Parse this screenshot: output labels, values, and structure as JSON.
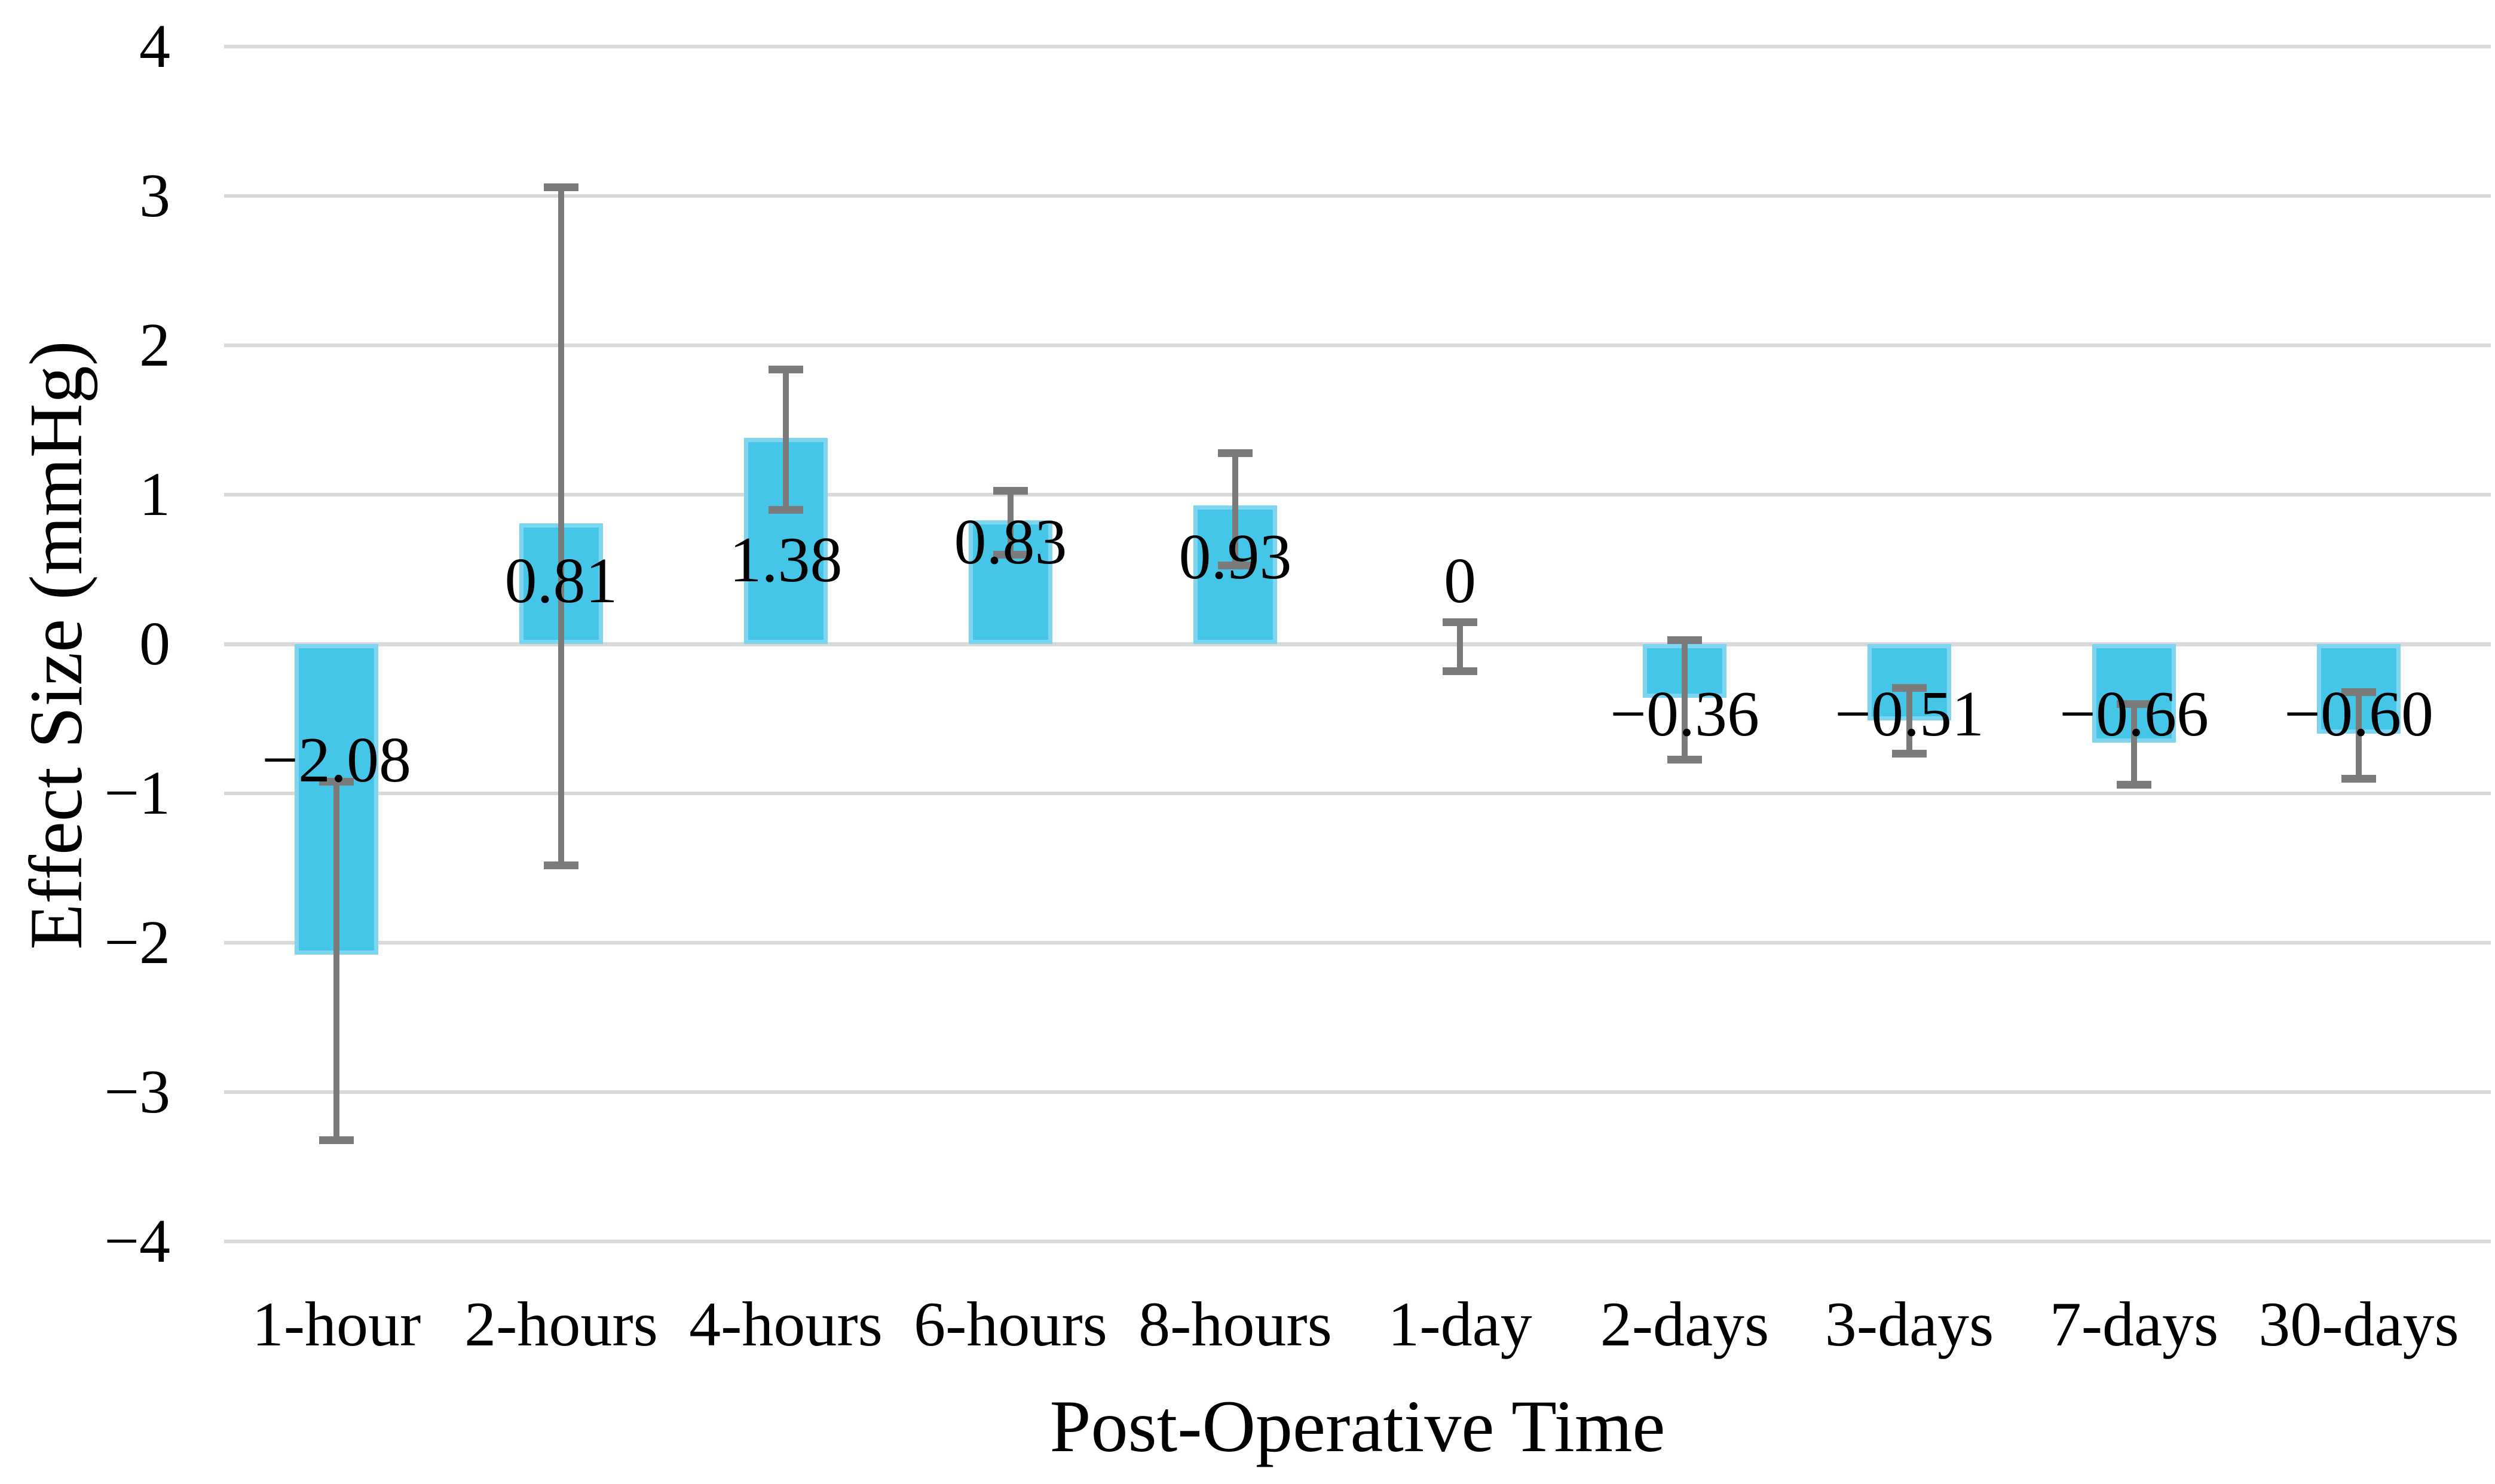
{
  "chart_data": {
    "type": "bar",
    "title": "",
    "xlabel": "Post-Operative Time",
    "ylabel": "Effect Size (mmHg)",
    "categories": [
      "1-hour",
      "2-hours",
      "4-hours",
      "6-hours",
      "8-hours",
      "1-day",
      "2-days",
      "3-days",
      "7-days",
      "30-days"
    ],
    "values": [
      -2.08,
      0.81,
      1.38,
      0.83,
      0.93,
      0,
      -0.36,
      -0.51,
      -0.66,
      -0.6
    ],
    "data_labels": [
      "−2.08",
      "0.81",
      "1.38",
      "0.83",
      "0.93",
      "0",
      "−0.36",
      "−0.51",
      "−0.66",
      "−0.60"
    ],
    "error_bars": {
      "low": [
        -3.32,
        -1.48,
        0.9,
        0.6,
        0.53,
        -0.18,
        -0.77,
        -0.73,
        -0.94,
        -0.9
      ],
      "high": [
        -0.92,
        3.06,
        1.84,
        1.03,
        1.28,
        0.15,
        0.03,
        -0.29,
        -0.4,
        -0.32
      ]
    },
    "ylim": [
      -4,
      4
    ],
    "ytick_values": [
      4,
      3,
      2,
      1,
      0,
      -1,
      -2,
      -3,
      -4
    ],
    "ytick_labels": [
      "4",
      "3",
      "2",
      "1",
      "0",
      "−1",
      "−2",
      "−3",
      "−4"
    ],
    "grid": "horizontal",
    "legend": "none",
    "layout": {
      "label_positions_v": [
        -0.78,
        0.42,
        0.56,
        0.68,
        0.58,
        0.42,
        -0.47,
        -0.47,
        -0.47,
        -0.47
      ]
    },
    "colors": {
      "bar_fill": "#45c6e9",
      "bar_edge": "#7ed5f0",
      "error_bar": "#7b7b7b",
      "gridline": "#d9d9d9",
      "text": "#000000",
      "background": "#ffffff"
    }
  }
}
